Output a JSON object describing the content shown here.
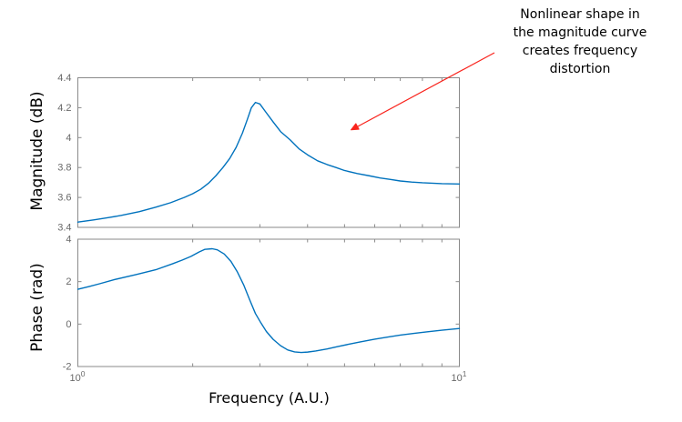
{
  "figure": {
    "xlabel": "Frequency (A.U.)",
    "annotation": {
      "text": "Nonlinear shape in\nthe magnitude curve\ncreates frequency\ndistortion"
    }
  },
  "colors": {
    "curve": "#0072BD",
    "axis": "#8a8a8a",
    "tick_label": "#696969",
    "annotation_arrow": "#f9241d",
    "text": "#000000",
    "background": "#ffffff"
  },
  "chart_data": [
    {
      "type": "line",
      "title": "",
      "ylabel": "Magnitude (dB)",
      "xlabel": "",
      "xscale": "log",
      "xlim": [
        1,
        10
      ],
      "ylim": [
        3.4,
        4.4
      ],
      "yticks": [
        3.4,
        3.6,
        3.8,
        4.0,
        4.2,
        4.4
      ],
      "ytick_labels": [
        "3.4",
        "3.6",
        "3.8",
        "4",
        "4.2",
        "4.4"
      ],
      "x_minor_ticks": [
        2,
        3,
        4,
        5,
        6,
        7,
        8,
        9
      ],
      "grid": false,
      "legend": null,
      "x": [
        1.0,
        1.1,
        1.2,
        1.3,
        1.45,
        1.6,
        1.75,
        1.9,
        2.0,
        2.1,
        2.2,
        2.3,
        2.4,
        2.5,
        2.6,
        2.7,
        2.78,
        2.85,
        2.92,
        3.0,
        3.1,
        3.25,
        3.4,
        3.6,
        3.8,
        4.0,
        4.25,
        4.5,
        4.75,
        5.0,
        5.4,
        5.8,
        6.2,
        6.6,
        7.0,
        7.5,
        8.0,
        9.0,
        10.0
      ],
      "y": [
        3.435,
        3.45,
        3.465,
        3.48,
        3.505,
        3.535,
        3.565,
        3.6,
        3.625,
        3.655,
        3.695,
        3.745,
        3.8,
        3.86,
        3.935,
        4.03,
        4.12,
        4.2,
        4.235,
        4.225,
        4.175,
        4.105,
        4.04,
        3.985,
        3.925,
        3.885,
        3.845,
        3.82,
        3.8,
        3.78,
        3.76,
        3.745,
        3.73,
        3.72,
        3.71,
        3.703,
        3.698,
        3.692,
        3.69
      ]
    },
    {
      "type": "line",
      "title": "",
      "ylabel": "Phase (rad)",
      "xlabel": "Frequency (A.U.)",
      "xscale": "log",
      "xlim": [
        1,
        10
      ],
      "ylim": [
        -2,
        4
      ],
      "yticks": [
        -2,
        0,
        2,
        4
      ],
      "ytick_labels": [
        "-2",
        "0",
        "2",
        "4"
      ],
      "xticks": [
        1,
        10
      ],
      "xtick_base": "10",
      "xtick_exponents": [
        "0",
        "1"
      ],
      "x_minor_ticks": [
        2,
        3,
        4,
        5,
        6,
        7,
        8,
        9
      ],
      "grid": false,
      "legend": null,
      "x": [
        1.0,
        1.07,
        1.14,
        1.25,
        1.42,
        1.6,
        1.77,
        1.88,
        1.98,
        2.08,
        2.15,
        2.25,
        2.32,
        2.42,
        2.52,
        2.62,
        2.72,
        2.82,
        2.92,
        3.02,
        3.12,
        3.25,
        3.4,
        3.55,
        3.7,
        3.85,
        4.0,
        4.2,
        4.5,
        4.8,
        5.1,
        5.5,
        6.0,
        6.5,
        7.0,
        7.6,
        8.2,
        9.0,
        10.0
      ],
      "y": [
        1.64,
        1.77,
        1.9,
        2.1,
        2.33,
        2.56,
        2.84,
        3.02,
        3.19,
        3.4,
        3.52,
        3.55,
        3.5,
        3.3,
        2.95,
        2.45,
        1.85,
        1.15,
        0.5,
        0.05,
        -0.35,
        -0.72,
        -1.02,
        -1.22,
        -1.31,
        -1.34,
        -1.32,
        -1.27,
        -1.17,
        -1.06,
        -0.96,
        -0.84,
        -0.71,
        -0.61,
        -0.52,
        -0.44,
        -0.37,
        -0.29,
        -0.21
      ]
    }
  ]
}
